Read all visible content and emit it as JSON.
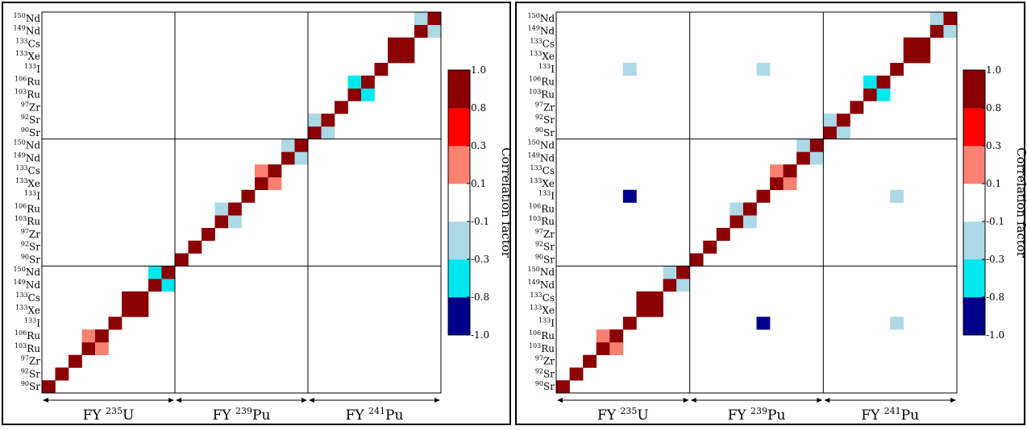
{
  "chart_data": [
    {
      "type": "heatmap",
      "title": "",
      "xlabel": "",
      "ylabel": "",
      "blocks": [
        {
          "label": "FY 235U",
          "sup": "235",
          "base": "U"
        },
        {
          "label": "FY 239Pu",
          "sup": "239",
          "base": "Pu"
        },
        {
          "label": "FY 241Pu",
          "sup": "241",
          "base": "Pu"
        }
      ],
      "nuclides": [
        {
          "sup": "90",
          "sym": "Sr"
        },
        {
          "sup": "92",
          "sym": "Sr"
        },
        {
          "sup": "97",
          "sym": "Zr"
        },
        {
          "sup": "103",
          "sym": "Ru"
        },
        {
          "sup": "106",
          "sym": "Ru"
        },
        {
          "sup": "133",
          "sym": "I"
        },
        {
          "sup": "133",
          "sym": "Xe"
        },
        {
          "sup": "133",
          "sym": "Cs"
        },
        {
          "sup": "149",
          "sym": "Nd"
        },
        {
          "sup": "150",
          "sym": "Nd"
        }
      ],
      "colorbar": {
        "label": "Correlation factor",
        "ticks": [
          "-1.0",
          "-0.8",
          "-0.3",
          "-0.1",
          "0.1",
          "0.3",
          "0.8",
          "1.0"
        ],
        "colors": [
          "#00008b",
          "#00e8ef",
          "#add8e6",
          "#ffffff",
          "#fa8072",
          "#ff0000",
          "#8b0000"
        ]
      },
      "matrix_note": "Block-diagonal correlation matrix; cells listed as [row_index, col_index, color_class], index 0 = 90Sr of FY 235U (bottom-left).",
      "cells": [
        [
          0,
          0,
          "dr"
        ],
        [
          1,
          1,
          "dr"
        ],
        [
          2,
          2,
          "dr"
        ],
        [
          3,
          3,
          "dr"
        ],
        [
          3,
          4,
          "sa"
        ],
        [
          4,
          3,
          "sa"
        ],
        [
          4,
          4,
          "dr"
        ],
        [
          5,
          5,
          "dr"
        ],
        [
          6,
          6,
          "dr"
        ],
        [
          6,
          7,
          "dr"
        ],
        [
          7,
          6,
          "dr"
        ],
        [
          7,
          7,
          "dr"
        ],
        [
          8,
          8,
          "dr"
        ],
        [
          8,
          9,
          "cy"
        ],
        [
          9,
          8,
          "cy"
        ],
        [
          9,
          9,
          "dr"
        ],
        [
          10,
          10,
          "dr"
        ],
        [
          11,
          11,
          "dr"
        ],
        [
          12,
          12,
          "dr"
        ],
        [
          13,
          13,
          "dr"
        ],
        [
          13,
          14,
          "lb"
        ],
        [
          14,
          13,
          "lb"
        ],
        [
          14,
          14,
          "dr"
        ],
        [
          15,
          15,
          "dr"
        ],
        [
          16,
          16,
          "dr"
        ],
        [
          16,
          17,
          "sa"
        ],
        [
          17,
          16,
          "sa"
        ],
        [
          17,
          17,
          "dr"
        ],
        [
          18,
          18,
          "dr"
        ],
        [
          18,
          19,
          "lb"
        ],
        [
          19,
          18,
          "lb"
        ],
        [
          19,
          19,
          "dr"
        ],
        [
          20,
          20,
          "dr"
        ],
        [
          20,
          21,
          "lb"
        ],
        [
          21,
          20,
          "lb"
        ],
        [
          21,
          21,
          "dr"
        ],
        [
          22,
          22,
          "dr"
        ],
        [
          23,
          23,
          "dr"
        ],
        [
          23,
          24,
          "cy"
        ],
        [
          24,
          23,
          "cy"
        ],
        [
          24,
          24,
          "dr"
        ],
        [
          25,
          25,
          "dr"
        ],
        [
          26,
          26,
          "dr"
        ],
        [
          26,
          27,
          "dr"
        ],
        [
          27,
          26,
          "dr"
        ],
        [
          27,
          27,
          "dr"
        ],
        [
          28,
          28,
          "dr"
        ],
        [
          28,
          29,
          "lb"
        ],
        [
          29,
          28,
          "lb"
        ],
        [
          29,
          29,
          "dr"
        ]
      ]
    },
    {
      "type": "heatmap",
      "title": "",
      "xlabel": "",
      "ylabel": "",
      "blocks": [
        {
          "label": "FY 235U",
          "sup": "235",
          "base": "U"
        },
        {
          "label": "FY 239Pu",
          "sup": "239",
          "base": "Pu"
        },
        {
          "label": "FY 241Pu",
          "sup": "241",
          "base": "Pu"
        }
      ],
      "nuclides": [
        {
          "sup": "90",
          "sym": "Sr"
        },
        {
          "sup": "92",
          "sym": "Sr"
        },
        {
          "sup": "97",
          "sym": "Zr"
        },
        {
          "sup": "103",
          "sym": "Ru"
        },
        {
          "sup": "106",
          "sym": "Ru"
        },
        {
          "sup": "133",
          "sym": "I"
        },
        {
          "sup": "133",
          "sym": "Xe"
        },
        {
          "sup": "133",
          "sym": "Cs"
        },
        {
          "sup": "149",
          "sym": "Nd"
        },
        {
          "sup": "150",
          "sym": "Nd"
        }
      ],
      "colorbar": {
        "label": "Correlation factor",
        "ticks": [
          "-1.0",
          "-0.8",
          "-0.3",
          "-0.1",
          "0.1",
          "0.3",
          "0.8",
          "1.0"
        ],
        "colors": [
          "#00008b",
          "#00e8ef",
          "#add8e6",
          "#ffffff",
          "#fa8072",
          "#ff0000",
          "#8b0000"
        ]
      },
      "matrix_note": "Same layout as left panel plus off-block 133I correlations.",
      "cells": [
        [
          0,
          0,
          "dr"
        ],
        [
          1,
          1,
          "dr"
        ],
        [
          2,
          2,
          "dr"
        ],
        [
          3,
          3,
          "dr"
        ],
        [
          3,
          4,
          "sa"
        ],
        [
          4,
          3,
          "sa"
        ],
        [
          4,
          4,
          "dr"
        ],
        [
          5,
          5,
          "dr"
        ],
        [
          6,
          6,
          "dr"
        ],
        [
          6,
          7,
          "dr"
        ],
        [
          7,
          6,
          "dr"
        ],
        [
          7,
          7,
          "dr"
        ],
        [
          8,
          8,
          "dr"
        ],
        [
          8,
          9,
          "lb"
        ],
        [
          9,
          8,
          "lb"
        ],
        [
          9,
          9,
          "dr"
        ],
        [
          10,
          10,
          "dr"
        ],
        [
          11,
          11,
          "dr"
        ],
        [
          12,
          12,
          "dr"
        ],
        [
          13,
          13,
          "dr"
        ],
        [
          13,
          14,
          "lb"
        ],
        [
          14,
          13,
          "lb"
        ],
        [
          14,
          14,
          "dr"
        ],
        [
          15,
          15,
          "dr"
        ],
        [
          16,
          16,
          "dr"
        ],
        [
          16,
          17,
          "sa"
        ],
        [
          17,
          16,
          "sa"
        ],
        [
          17,
          17,
          "dr"
        ],
        [
          18,
          18,
          "dr"
        ],
        [
          18,
          19,
          "lb"
        ],
        [
          19,
          18,
          "lb"
        ],
        [
          19,
          19,
          "dr"
        ],
        [
          20,
          20,
          "dr"
        ],
        [
          20,
          21,
          "lb"
        ],
        [
          21,
          20,
          "lb"
        ],
        [
          21,
          21,
          "dr"
        ],
        [
          22,
          22,
          "dr"
        ],
        [
          23,
          23,
          "dr"
        ],
        [
          23,
          24,
          "cy"
        ],
        [
          24,
          23,
          "cy"
        ],
        [
          24,
          24,
          "dr"
        ],
        [
          25,
          25,
          "dr"
        ],
        [
          26,
          26,
          "dr"
        ],
        [
          26,
          27,
          "dr"
        ],
        [
          27,
          26,
          "dr"
        ],
        [
          27,
          27,
          "dr"
        ],
        [
          28,
          28,
          "dr"
        ],
        [
          28,
          29,
          "lb"
        ],
        [
          29,
          28,
          "lb"
        ],
        [
          29,
          29,
          "dr"
        ],
        [
          5,
          15,
          "nv"
        ],
        [
          5,
          25,
          "lb"
        ],
        [
          15,
          5,
          "nv"
        ],
        [
          15,
          25,
          "lb"
        ],
        [
          25,
          5,
          "lb"
        ],
        [
          25,
          15,
          "lb"
        ]
      ]
    }
  ],
  "color_classes": {
    "dr": "#8b0000",
    "sa": "#fa8072",
    "lb": "#add8e6",
    "cy": "#00e8ef",
    "nv": "#00008b"
  }
}
